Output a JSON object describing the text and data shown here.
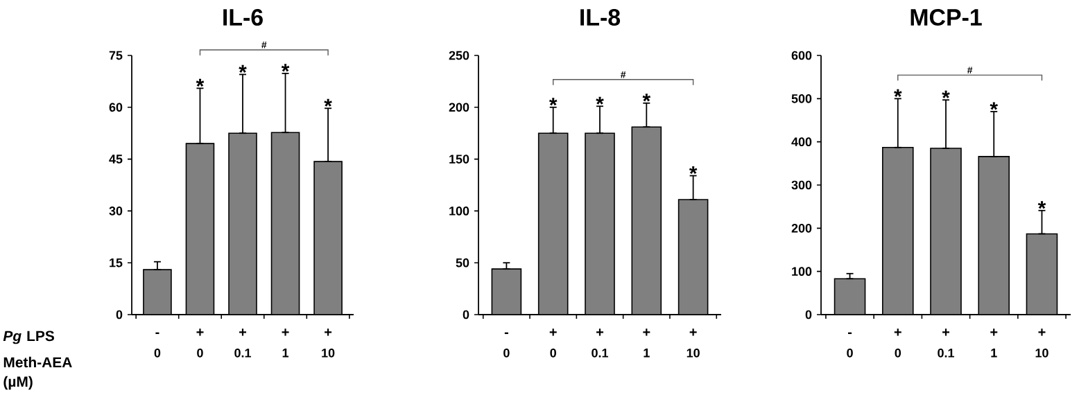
{
  "chart_data": [
    {
      "type": "bar",
      "title": "IL-6",
      "categories": [
        "0",
        "0",
        "0.1",
        "1",
        "10"
      ],
      "color": "#808080",
      "values": [
        13,
        49.5,
        52.5,
        52.7,
        44.3
      ],
      "errors": [
        [
          13,
          15.3
        ],
        [
          49.5,
          65.5
        ],
        [
          52.5,
          69.5
        ],
        [
          52.7,
          69.8
        ],
        [
          44.3,
          59.7
        ]
      ],
      "value_labels": [
        null,
        "*",
        "*",
        "*",
        "*"
      ],
      "ylim": [
        0,
        75
      ],
      "yticks": [
        0,
        15,
        30,
        45,
        60,
        75
      ],
      "annotations": [
        "#",
        "-",
        "+",
        "+",
        "+",
        "+",
        "*Pg* LPS",
        "Meth-AEA (µM)"
      ]
    },
    {
      "type": "bar",
      "title": "IL-8",
      "categories": [
        "0",
        "0",
        "0.1",
        "1",
        "10"
      ],
      "color": "#808080",
      "values": [
        44,
        175,
        175,
        181,
        111
      ],
      "errors": [
        [
          44,
          50
        ],
        [
          175,
          200
        ],
        [
          175,
          201
        ],
        [
          181,
          204
        ],
        [
          111,
          134
        ]
      ],
      "value_labels": [
        null,
        "*",
        "*",
        "*",
        "*"
      ],
      "ylim": [
        0,
        250
      ],
      "yticks": [
        0,
        50,
        100,
        150,
        200,
        250
      ],
      "annotations": [
        "#",
        "-",
        "+",
        "+",
        "+",
        "+"
      ]
    },
    {
      "type": "bar",
      "title": "MCP-1",
      "categories": [
        "0",
        "0",
        "0.1",
        "1",
        "10"
      ],
      "color": "#808080",
      "values": [
        83,
        387,
        385,
        366,
        187
      ],
      "errors": [
        [
          83,
          95
        ],
        [
          387,
          500
        ],
        [
          385,
          497
        ],
        [
          366,
          470
        ],
        [
          187,
          241
        ]
      ],
      "value_labels": [
        null,
        "*",
        "*",
        "*",
        "*"
      ],
      "ylim": [
        0,
        600
      ],
      "yticks": [
        0,
        100,
        200,
        300,
        400,
        500,
        600
      ],
      "annotations": [
        "#",
        "-",
        "+",
        "+",
        "+",
        "+"
      ]
    }
  ]
}
